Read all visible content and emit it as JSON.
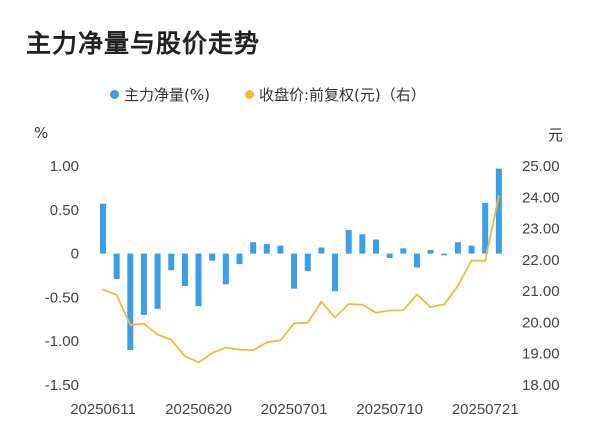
{
  "page": {
    "title": "主力净量与股价走势"
  },
  "chart_data": {
    "type": "bar",
    "title": "主力净量与股价走势",
    "left_unit": "%",
    "right_unit": "元",
    "legend": [
      {
        "name": "主力净量(%)",
        "color": "#3a9ee8"
      },
      {
        "name": "收盘价:前复权(元)（右）",
        "color": "#f5b83a"
      }
    ],
    "legend_placement": "top-center",
    "grid": false,
    "x_tick_labels": [
      "20250611",
      "20250620",
      "20250701",
      "20250710",
      "20250721"
    ],
    "x_tick_index": [
      0,
      7,
      14,
      21,
      28
    ],
    "y_left": {
      "ticks": [
        "1.00",
        "0.50",
        "0",
        "-0.50",
        "-1.00",
        "-1.50"
      ],
      "range": [
        -1.5,
        1.0
      ]
    },
    "y_right": {
      "ticks": [
        "25.00",
        "24.00",
        "23.00",
        "22.00",
        "21.00",
        "20.00",
        "19.00",
        "18.00"
      ],
      "range": [
        18.0,
        25.0
      ]
    },
    "series": [
      {
        "name": "主力净量(%)",
        "kind": "bar",
        "axis": "left",
        "color": "#3a9ee8",
        "values": [
          0.57,
          -0.29,
          -1.1,
          -0.7,
          -0.63,
          -0.19,
          -0.37,
          -0.6,
          -0.08,
          -0.35,
          -0.12,
          0.13,
          0.11,
          0.09,
          -0.4,
          -0.2,
          0.07,
          -0.43,
          0.27,
          0.22,
          0.16,
          -0.05,
          0.06,
          -0.16,
          0.04,
          -0.02,
          0.13,
          0.09,
          0.58,
          0.97
        ]
      },
      {
        "name": "收盘价:前复权(元)（右）",
        "kind": "line",
        "axis": "right",
        "color": "#f5b83a",
        "values": [
          21.05,
          20.88,
          19.92,
          19.96,
          19.61,
          19.45,
          18.92,
          18.72,
          19.02,
          19.2,
          19.13,
          19.11,
          19.36,
          19.43,
          19.97,
          19.99,
          20.66,
          20.16,
          20.59,
          20.57,
          20.31,
          20.38,
          20.39,
          20.89,
          20.49,
          20.58,
          21.17,
          21.98,
          21.97,
          24.04
        ]
      }
    ]
  }
}
